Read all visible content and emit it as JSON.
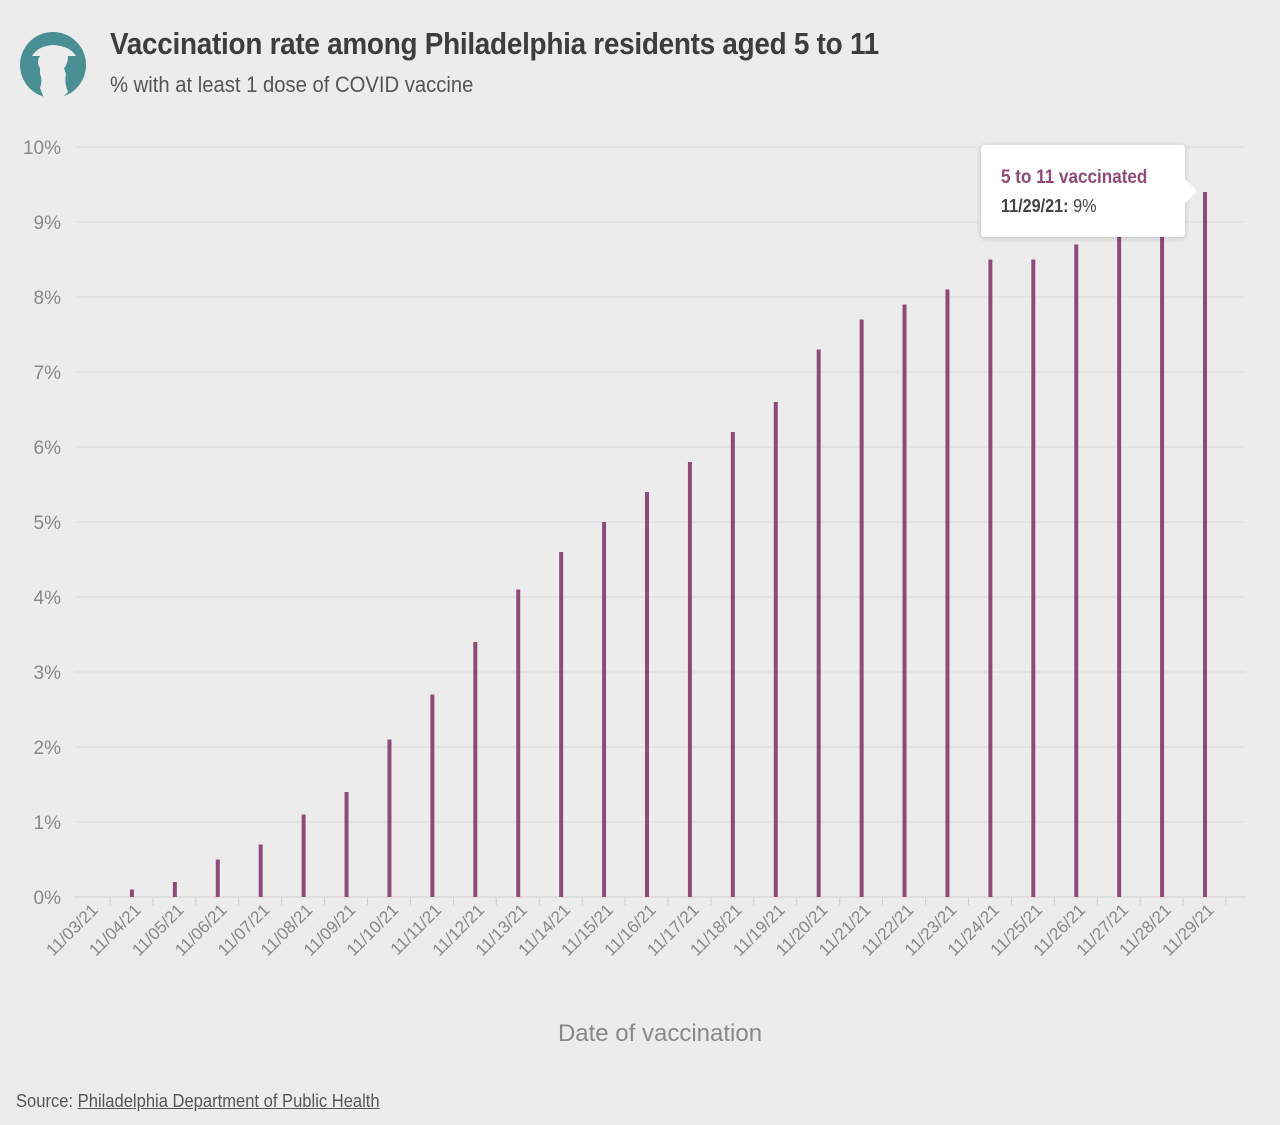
{
  "header": {
    "title": "Vaccination rate among Philadelphia residents aged 5 to 11",
    "subtitle": "% with at least 1 dose of COVID vaccine"
  },
  "colors": {
    "bar": "#8e4a78",
    "logo": "#4a8f94",
    "grid": "#dddddd"
  },
  "tooltip": {
    "series": "5 to 11 vaccinated",
    "date": "11/29/21",
    "sep": ": ",
    "value": "9%"
  },
  "source": {
    "label": "Source: ",
    "link": "Philadelphia Department of Public Health"
  },
  "chart_data": {
    "type": "bar",
    "title": "Vaccination rate among Philadelphia residents aged 5 to 11",
    "subtitle": "% with at least 1 dose of COVID vaccine",
    "xlabel": "Date of vaccination",
    "ylabel": "",
    "ylim": [
      0,
      10
    ],
    "yticks": [
      "0%",
      "1%",
      "2%",
      "3%",
      "4%",
      "5%",
      "6%",
      "7%",
      "8%",
      "9%",
      "10%"
    ],
    "grid": true,
    "categories": [
      "11/03/21",
      "11/04/21",
      "11/05/21",
      "11/06/21",
      "11/07/21",
      "11/08/21",
      "11/09/21",
      "11/10/21",
      "11/11/21",
      "11/12/21",
      "11/13/21",
      "11/14/21",
      "11/15/21",
      "11/16/21",
      "11/17/21",
      "11/18/21",
      "11/19/21",
      "11/20/21",
      "11/21/21",
      "11/22/21",
      "11/23/21",
      "11/24/21",
      "11/25/21",
      "11/26/21",
      "11/27/21",
      "11/28/21",
      "11/29/21"
    ],
    "series": [
      {
        "name": "5 to 11 vaccinated",
        "values": [
          0,
          0.1,
          0.2,
          0.5,
          0.7,
          1.1,
          1.4,
          2.1,
          2.7,
          3.4,
          4.1,
          4.6,
          5.0,
          5.4,
          5.8,
          6.2,
          6.6,
          7.3,
          7.7,
          7.9,
          8.1,
          8.5,
          8.5,
          8.7,
          8.9,
          9.0,
          9.4
        ]
      }
    ]
  }
}
